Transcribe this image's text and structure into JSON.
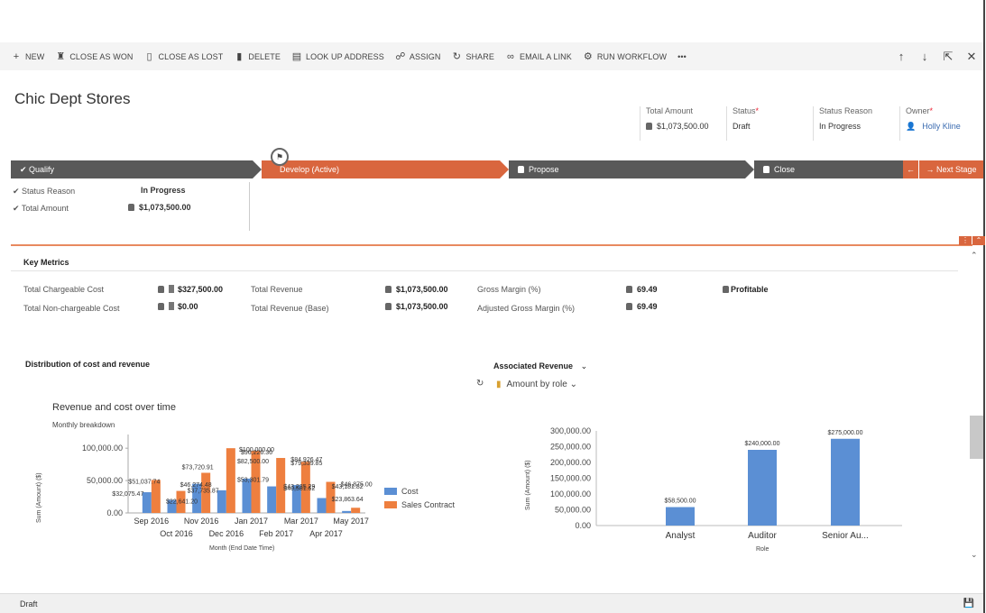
{
  "toolbar": {
    "new": "NEW",
    "close_won": "CLOSE AS WON",
    "close_lost": "CLOSE AS LOST",
    "delete": "DELETE",
    "lookup": "LOOK UP ADDRESS",
    "assign": "ASSIGN",
    "share": "SHARE",
    "email": "EMAIL A LINK",
    "workflow": "RUN WORKFLOW",
    "more": "•••"
  },
  "record": {
    "title": "Chic Dept Stores"
  },
  "header_fields": {
    "total_amount_label": "Total Amount",
    "total_amount_value": "$1,073,500.00",
    "status_label": "Status",
    "status_value": "Draft",
    "status_reason_label": "Status Reason",
    "status_reason_value": "In Progress",
    "owner_label": "Owner",
    "owner_value": "Holly Kline"
  },
  "process": {
    "stages": [
      "Qualify",
      "Develop (Active)",
      "Propose",
      "Close"
    ],
    "next_stage": "Next Stage",
    "fields": [
      {
        "label": "Status Reason",
        "value": "In Progress"
      },
      {
        "label": "Total Amount",
        "value": "$1,073,500.00"
      }
    ]
  },
  "key_metrics": {
    "heading": "Key Metrics",
    "total_chargeable_cost_label": "Total Chargeable Cost",
    "total_chargeable_cost": "$327,500.00",
    "total_nonchargeable_cost_label": "Total Non-chargeable Cost",
    "total_nonchargeable_cost": "$0.00",
    "total_revenue_label": "Total Revenue",
    "total_revenue": "$1,073,500.00",
    "total_revenue_base_label": "Total Revenue (Base)",
    "total_revenue_base": "$1,073,500.00",
    "gross_margin_label": "Gross Margin (%)",
    "gross_margin": "69.49",
    "adjusted_gross_margin_label": "Adjusted Gross Margin (%)",
    "adjusted_gross_margin": "69.49",
    "profitable": "Profitable"
  },
  "distribution": {
    "heading": "Distribution of cost and revenue",
    "chart_title": "Revenue and cost over time",
    "chart_subtitle": "Monthly breakdown",
    "ylabel": "Sum (Amount) ($)",
    "xlabel": "Month (End Date Time)",
    "legend_cost": "Cost",
    "legend_sales": "Sales Contract"
  },
  "associated": {
    "heading": "Associated Revenue",
    "view_selector": "Amount by role",
    "ylabel": "Sum (Amount) ($)",
    "xlabel": "Role"
  },
  "footer": {
    "status": "Draft"
  },
  "colors": {
    "accent": "#d9663e",
    "stage_grey": "#595959",
    "cost": "#5b8fd4",
    "sales": "#ee7f3f"
  },
  "chart_data": [
    {
      "type": "bar",
      "title": "Revenue and cost over time",
      "subtitle": "Monthly breakdown",
      "xlabel": "Month (End Date Time)",
      "ylabel": "Sum (Amount) ($)",
      "ylim": [
        0,
        110000
      ],
      "y_ticks": [
        "0.00",
        "50,000.00",
        "100,000.00"
      ],
      "categories": [
        "Sep 2016",
        "Oct 2016",
        "Nov 2016",
        "Dec 2016",
        "Jan 2017",
        "Feb 2017",
        "Mar 2017",
        "Apr 2017",
        "May 2017"
      ],
      "x_tick_row1": [
        "Sep 2016",
        "Nov 2016",
        "Jan 2017",
        "Mar 2017",
        "May 2017"
      ],
      "x_tick_row2": [
        "Oct 2016",
        "Dec 2016",
        "Feb 2017",
        "Apr 2017"
      ],
      "series": [
        {
          "name": "Cost",
          "values": [
            32000,
            20000,
            45000,
            35000,
            53000,
            41000,
            43000,
            23000,
            3000
          ]
        },
        {
          "name": "Sales Contract",
          "values": [
            51000,
            34000,
            62000,
            100000,
            96000,
            84900,
            79000,
            48000,
            8000
          ]
        }
      ],
      "data_labels": [
        "$51,037.74",
        "$32,075.47",
        "$22,641.20",
        "$73,720.91",
        "$46,274.48",
        "$37,735.87",
        "$100,000.00",
        "$96,226.36",
        "$82,500.00",
        "$53,301.79",
        "$84,926.47",
        "$79,339.85",
        "$43,235.29",
        "$40,581.62",
        "$46,875.00",
        "$43,181.82",
        "$23,863.64"
      ],
      "legend": [
        "Cost",
        "Sales Contract"
      ],
      "legend_position": "right"
    },
    {
      "type": "bar",
      "title": "",
      "xlabel": "Role",
      "ylabel": "Sum (Amount) ($)",
      "ylim": [
        0,
        300000
      ],
      "y_ticks": [
        "0.00",
        "50,000.00",
        "100,000.00",
        "150,000.00",
        "200,000.00",
        "250,000.00",
        "300,000.00"
      ],
      "categories": [
        "Analyst",
        "Auditor",
        "Senior Au..."
      ],
      "values": [
        58500,
        240000,
        275000
      ],
      "data_labels": [
        "$58,500.00",
        "$240,000.00",
        "$275,000.00"
      ]
    }
  ]
}
